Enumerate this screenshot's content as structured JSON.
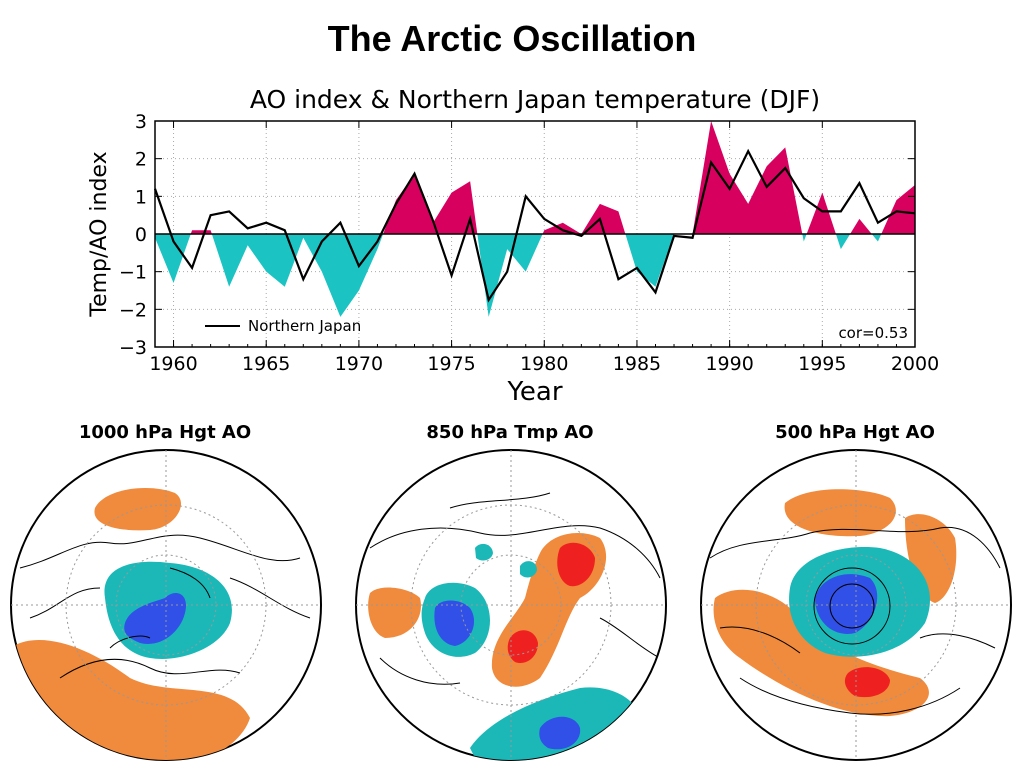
{
  "slide_title": "The Arctic Oscillation",
  "maps": [
    {
      "title": "1000 hPa Hgt AO"
    },
    {
      "title": "850 hPa Tmp AO"
    },
    {
      "title": "500 hPa Hgt AO"
    }
  ],
  "colors": {
    "positive_fill": "#d8005f",
    "negative_fill": "#1cc3c3",
    "line": "#000000",
    "map_orange": "#f08a3c",
    "map_cyan": "#1cb8b8",
    "map_blue": "#3050e8",
    "map_red": "#ee2020"
  },
  "chart_data": {
    "type": "area",
    "title": "AO index & Northern Japan temperature (DJF)",
    "xlabel": "Year",
    "ylabel": "Temp/AO index",
    "xlim": [
      1959,
      2000
    ],
    "ylim": [
      -3,
      3
    ],
    "x_ticks": [
      1960,
      1965,
      1970,
      1975,
      1980,
      1985,
      1990,
      1995,
      2000
    ],
    "y_ticks": [
      -3,
      -2,
      -1,
      0,
      1,
      2,
      3
    ],
    "grid": true,
    "legend_position": "bottom-left",
    "annotation": "cor=0.53",
    "x": [
      1959,
      1960,
      1961,
      1962,
      1963,
      1964,
      1965,
      1966,
      1967,
      1968,
      1969,
      1970,
      1971,
      1972,
      1973,
      1974,
      1975,
      1976,
      1977,
      1978,
      1979,
      1980,
      1981,
      1982,
      1983,
      1984,
      1985,
      1986,
      1987,
      1988,
      1989,
      1990,
      1991,
      1992,
      1993,
      1994,
      1995,
      1996,
      1997,
      1998,
      1999,
      2000
    ],
    "series": [
      {
        "kind": "filled-area",
        "values": [
          -0.1,
          -1.3,
          0.1,
          0.1,
          -1.4,
          -0.3,
          -1.0,
          -1.4,
          -0.1,
          -1.0,
          -2.2,
          -1.5,
          -0.4,
          0.9,
          1.6,
          0.3,
          1.1,
          1.4,
          -2.2,
          -0.4,
          -1.0,
          0.1,
          0.3,
          0.0,
          0.8,
          0.6,
          -1.0,
          -1.4,
          0.0,
          0.0,
          3.0,
          1.6,
          0.8,
          1.8,
          2.3,
          -0.2,
          1.1,
          -0.4,
          0.4,
          -0.2,
          0.9,
          1.3
        ]
      },
      {
        "name": "Northern Japan",
        "kind": "line",
        "values": [
          1.2,
          -0.2,
          -0.9,
          0.5,
          0.6,
          0.15,
          0.3,
          0.1,
          -1.2,
          -0.2,
          0.3,
          -0.85,
          -0.2,
          0.8,
          1.6,
          0.35,
          -1.1,
          0.4,
          -1.75,
          -1.0,
          1.0,
          0.4,
          0.1,
          -0.05,
          0.4,
          -1.2,
          -0.9,
          -1.55,
          -0.05,
          -0.1,
          1.9,
          1.2,
          2.2,
          1.25,
          1.75,
          0.95,
          0.6,
          0.6,
          1.35,
          0.3,
          0.6,
          0.55
        ]
      }
    ]
  }
}
